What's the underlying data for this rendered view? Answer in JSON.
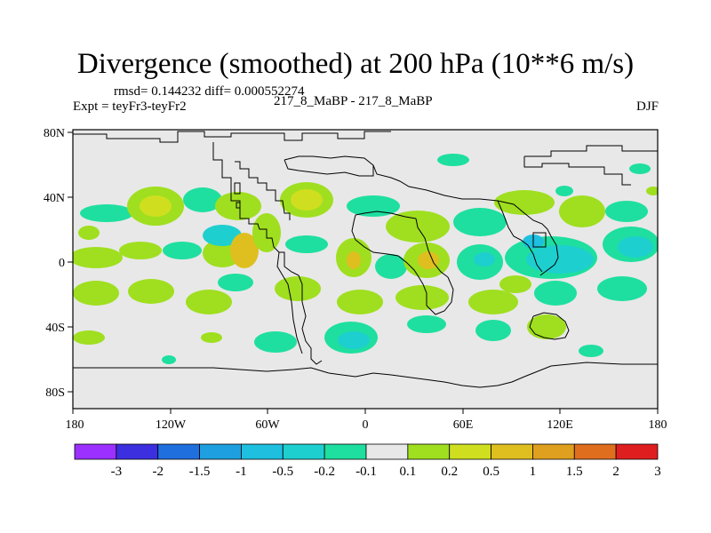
{
  "title": "Divergence (smoothed) at 200 hPa (10**6 m/s)",
  "stats": "rmsd= 0.144232 diff= 0.000552274",
  "experiment": "Expt = teyFr3-teyFr2",
  "runs": "217_8_MaBP - 217_8_MaBP",
  "season": "DJF",
  "lat_labels": [
    "80N",
    "40N",
    "0",
    "40S",
    "80S"
  ],
  "lon_labels": [
    "180",
    "120W",
    "60W",
    "0",
    "60E",
    "120E",
    "180"
  ],
  "colorbar": {
    "labels": [
      "-3",
      "-2",
      "-1.5",
      "-1",
      "-0.5",
      "-0.2",
      "-0.1",
      "0.1",
      "0.2",
      "0.5",
      "1",
      "1.5",
      "2",
      "3"
    ],
    "colors": [
      "#9b30ff",
      "#3b2fdf",
      "#1f6fdf",
      "#1e9fdf",
      "#1ebfdf",
      "#1ecfcf",
      "#1edf9f",
      "#e8e8e8",
      "#9fdf1f",
      "#cfdf1f",
      "#dfbf1f",
      "#df9f1f",
      "#df6f1f",
      "#df1f1f"
    ]
  },
  "colors": {
    "background": "#e8e8e8",
    "neg_weak": "#1edf9f",
    "neg_mid": "#1ecfcf",
    "neg_strong": "#1ebfdf",
    "pos_weak": "#9fdf1f",
    "pos_mid": "#cfdf1f",
    "pos_strong": "#dfbf1f",
    "pos_max": "#df9f1f"
  }
}
